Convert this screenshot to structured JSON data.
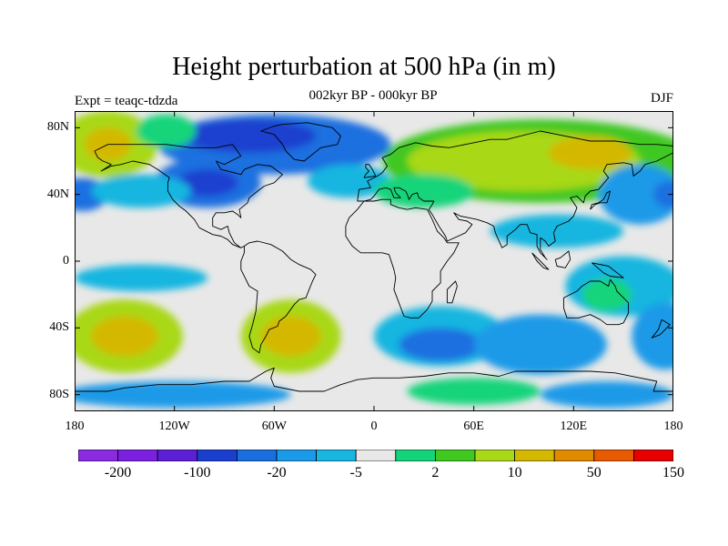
{
  "title": "Height perturbation at 500 hPa (in m)",
  "subtitle_left": "Expt = teaqc-tdzda",
  "subtitle_center": "002kyr BP - 000kyr BP",
  "subtitle_right": "DJF",
  "map": {
    "projection": "cylindrical equidistant",
    "lon_range": [
      -180,
      180
    ],
    "lat_range": [
      -90,
      90
    ],
    "y_ticks": [
      {
        "lat": 80,
        "label": "80N"
      },
      {
        "lat": 40,
        "label": "40N"
      },
      {
        "lat": 0,
        "label": "0"
      },
      {
        "lat": -40,
        "label": "40S"
      },
      {
        "lat": -80,
        "label": "80S"
      }
    ],
    "x_ticks": [
      {
        "lon": -180,
        "label": "180"
      },
      {
        "lon": -120,
        "label": "120W"
      },
      {
        "lon": -60,
        "label": "60W"
      },
      {
        "lon": 0,
        "label": "0"
      },
      {
        "lon": 60,
        "label": "60E"
      },
      {
        "lon": 120,
        "label": "120E"
      },
      {
        "lon": 180,
        "label": "180"
      }
    ],
    "background_color": "#e8e8e8",
    "coastline_color": "#000000"
  },
  "colorbar": {
    "colors": [
      "#8a2be2",
      "#7b1fe0",
      "#5a1fd6",
      "#1a3fcf",
      "#1a6fe0",
      "#1a9ae8",
      "#18b6e0",
      "#e8e8e8",
      "#14d47a",
      "#40c820",
      "#a8d818",
      "#d4b800",
      "#e08a00",
      "#e85a00",
      "#e80000"
    ],
    "labels": [
      {
        "boundary": 1,
        "text": "-200"
      },
      {
        "boundary": 3,
        "text": "-100"
      },
      {
        "boundary": 5,
        "text": "-20"
      },
      {
        "boundary": 7,
        "text": "-5"
      },
      {
        "boundary": 9,
        "text": "2"
      },
      {
        "boundary": 11,
        "text": "10"
      },
      {
        "boundary": 13,
        "text": "50"
      },
      {
        "boundary": 15,
        "text": "150"
      }
    ]
  },
  "blobs": [
    {
      "lon": -60,
      "lat": 70,
      "rlon": 70,
      "rlat": 18,
      "color": "#1a6fe0"
    },
    {
      "lon": -75,
      "lat": 75,
      "rlon": 40,
      "rlat": 10,
      "color": "#1a3fcf"
    },
    {
      "lon": -100,
      "lat": 47,
      "rlon": 32,
      "rlat": 15,
      "color": "#1a6fe0"
    },
    {
      "lon": -100,
      "lat": 47,
      "rlon": 18,
      "rlat": 8,
      "color": "#1a3fcf"
    },
    {
      "lon": -160,
      "lat": 70,
      "rlon": 30,
      "rlat": 20,
      "color": "#a8d818"
    },
    {
      "lon": -160,
      "lat": 70,
      "rlon": 14,
      "rlat": 10,
      "color": "#d4b800"
    },
    {
      "lon": -125,
      "lat": 78,
      "rlon": 18,
      "rlat": 10,
      "color": "#14d47a"
    },
    {
      "lon": -175,
      "lat": 40,
      "rlon": 15,
      "rlat": 10,
      "color": "#1a6fe0"
    },
    {
      "lon": -140,
      "lat": 42,
      "rlon": 30,
      "rlat": 10,
      "color": "#18b6e0"
    },
    {
      "lon": -15,
      "lat": 48,
      "rlon": 25,
      "rlat": 10,
      "color": "#18b6e0"
    },
    {
      "lon": 100,
      "lat": 60,
      "rlon": 95,
      "rlat": 25,
      "color": "#40c820"
    },
    {
      "lon": 90,
      "lat": 60,
      "rlon": 70,
      "rlat": 18,
      "color": "#a8d818"
    },
    {
      "lon": 130,
      "lat": 65,
      "rlon": 25,
      "rlat": 10,
      "color": "#d4b800"
    },
    {
      "lon": 30,
      "lat": 42,
      "rlon": 30,
      "rlat": 10,
      "color": "#14d47a"
    },
    {
      "lon": 160,
      "lat": 40,
      "rlon": 25,
      "rlat": 18,
      "color": "#1a9ae8"
    },
    {
      "lon": 178,
      "lat": 40,
      "rlon": 10,
      "rlat": 8,
      "color": "#1a6fe0"
    },
    {
      "lon": 110,
      "lat": 18,
      "rlon": 40,
      "rlat": 10,
      "color": "#18b6e0"
    },
    {
      "lon": 150,
      "lat": -15,
      "rlon": 35,
      "rlat": 18,
      "color": "#18b6e0"
    },
    {
      "lon": 140,
      "lat": -20,
      "rlon": 15,
      "rlat": 10,
      "color": "#14d47a"
    },
    {
      "lon": -150,
      "lat": -45,
      "rlon": 35,
      "rlat": 22,
      "color": "#a8d818"
    },
    {
      "lon": -150,
      "lat": -45,
      "rlon": 20,
      "rlat": 12,
      "color": "#d4b800"
    },
    {
      "lon": -140,
      "lat": -10,
      "rlon": 40,
      "rlat": 8,
      "color": "#18b6e0"
    },
    {
      "lon": -50,
      "lat": -45,
      "rlon": 30,
      "rlat": 22,
      "color": "#a8d818"
    },
    {
      "lon": -50,
      "lat": -45,
      "rlon": 18,
      "rlat": 12,
      "color": "#d4b800"
    },
    {
      "lon": 40,
      "lat": -45,
      "rlon": 40,
      "rlat": 18,
      "color": "#18b6e0"
    },
    {
      "lon": 40,
      "lat": -50,
      "rlon": 25,
      "rlat": 10,
      "color": "#1a6fe0"
    },
    {
      "lon": 100,
      "lat": -50,
      "rlon": 40,
      "rlat": 18,
      "color": "#1a9ae8"
    },
    {
      "lon": 175,
      "lat": -45,
      "rlon": 20,
      "rlat": 20,
      "color": "#1a9ae8"
    },
    {
      "lon": -120,
      "lat": -80,
      "rlon": 70,
      "rlat": 8,
      "color": "#1a9ae8"
    },
    {
      "lon": 60,
      "lat": -78,
      "rlon": 40,
      "rlat": 8,
      "color": "#14d47a"
    },
    {
      "lon": 140,
      "lat": -80,
      "rlon": 40,
      "rlat": 8,
      "color": "#1a9ae8"
    }
  ],
  "coastlines": [
    [
      [
        -168,
        66
      ],
      [
        -160,
        70
      ],
      [
        -140,
        70
      ],
      [
        -125,
        70
      ],
      [
        -110,
        68
      ],
      [
        -95,
        68
      ],
      [
        -85,
        70
      ],
      [
        -80,
        63
      ],
      [
        -90,
        58
      ],
      [
        -95,
        60
      ],
      [
        -92,
        55
      ],
      [
        -80,
        52
      ],
      [
        -78,
        55
      ],
      [
        -70,
        58
      ],
      [
        -62,
        57
      ],
      [
        -55,
        52
      ],
      [
        -60,
        47
      ],
      [
        -66,
        45
      ],
      [
        -70,
        42
      ],
      [
        -75,
        38
      ],
      [
        -76,
        35
      ],
      [
        -81,
        31
      ],
      [
        -80,
        26
      ],
      [
        -82,
        28
      ],
      [
        -85,
        30
      ],
      [
        -90,
        29
      ],
      [
        -95,
        29
      ],
      [
        -97,
        26
      ],
      [
        -97,
        21
      ],
      [
        -92,
        19
      ],
      [
        -88,
        21
      ],
      [
        -87,
        17
      ],
      [
        -84,
        11
      ],
      [
        -80,
        8
      ],
      [
        -78,
        9
      ],
      [
        -80,
        8
      ],
      [
        -85,
        10
      ],
      [
        -88,
        13
      ],
      [
        -92,
        15
      ],
      [
        -97,
        16
      ],
      [
        -105,
        20
      ],
      [
        -108,
        25
      ],
      [
        -113,
        30
      ],
      [
        -117,
        33
      ],
      [
        -121,
        37
      ],
      [
        -124,
        42
      ],
      [
        -124,
        47
      ],
      [
        -123,
        50
      ],
      [
        -130,
        55
      ],
      [
        -135,
        58
      ],
      [
        -145,
        60
      ],
      [
        -152,
        58
      ],
      [
        -158,
        57
      ],
      [
        -164,
        54
      ],
      [
        -158,
        58
      ],
      [
        -163,
        60
      ],
      [
        -166,
        62
      ],
      [
        -168,
        66
      ]
    ],
    [
      [
        -55,
        82
      ],
      [
        -40,
        83
      ],
      [
        -25,
        80
      ],
      [
        -20,
        75
      ],
      [
        -22,
        70
      ],
      [
        -32,
        68
      ],
      [
        -42,
        60
      ],
      [
        -48,
        61
      ],
      [
        -53,
        66
      ],
      [
        -55,
        70
      ],
      [
        -60,
        76
      ],
      [
        -68,
        78
      ],
      [
        -60,
        81
      ],
      [
        -55,
        82
      ]
    ],
    [
      [
        -78,
        9
      ],
      [
        -75,
        11
      ],
      [
        -70,
        12
      ],
      [
        -62,
        10
      ],
      [
        -55,
        6
      ],
      [
        -50,
        1
      ],
      [
        -45,
        -2
      ],
      [
        -38,
        -5
      ],
      [
        -35,
        -8
      ],
      [
        -37,
        -12
      ],
      [
        -39,
        -17
      ],
      [
        -41,
        -22
      ],
      [
        -45,
        -23
      ],
      [
        -48,
        -26
      ],
      [
        -53,
        -33
      ],
      [
        -57,
        -36
      ],
      [
        -58,
        -39
      ],
      [
        -63,
        -41
      ],
      [
        -65,
        -45
      ],
      [
        -68,
        -50
      ],
      [
        -69,
        -55
      ],
      [
        -73,
        -52
      ],
      [
        -75,
        -45
      ],
      [
        -73,
        -38
      ],
      [
        -71,
        -30
      ],
      [
        -70,
        -18
      ],
      [
        -75,
        -15
      ],
      [
        -80,
        -5
      ],
      [
        -80,
        0
      ],
      [
        -78,
        5
      ],
      [
        -78,
        9
      ]
    ],
    [
      [
        -10,
        36
      ],
      [
        -9,
        43
      ],
      [
        -2,
        44
      ],
      [
        -4,
        48
      ],
      [
        2,
        51
      ],
      [
        5,
        53
      ],
      [
        8,
        57
      ],
      [
        5,
        62
      ],
      [
        10,
        64
      ],
      [
        15,
        68
      ],
      [
        25,
        71
      ],
      [
        35,
        69
      ],
      [
        45,
        68
      ],
      [
        55,
        70
      ],
      [
        70,
        73
      ],
      [
        80,
        73
      ],
      [
        100,
        78
      ],
      [
        110,
        76
      ],
      [
        130,
        72
      ],
      [
        145,
        72
      ],
      [
        160,
        70
      ],
      [
        170,
        70
      ],
      [
        180,
        69
      ],
      [
        180,
        65
      ],
      [
        170,
        60
      ],
      [
        163,
        58
      ],
      [
        160,
        54
      ],
      [
        156,
        51
      ],
      [
        155,
        58
      ],
      [
        150,
        59
      ],
      [
        140,
        58
      ],
      [
        138,
        54
      ],
      [
        141,
        50
      ],
      [
        135,
        43
      ],
      [
        130,
        42
      ],
      [
        127,
        39
      ],
      [
        126,
        35
      ],
      [
        122,
        39
      ],
      [
        118,
        38
      ],
      [
        122,
        32
      ],
      [
        120,
        27
      ],
      [
        117,
        24
      ],
      [
        110,
        21
      ],
      [
        108,
        17
      ],
      [
        109,
        12
      ],
      [
        105,
        9
      ],
      [
        103,
        12
      ],
      [
        100,
        14
      ],
      [
        100,
        7
      ],
      [
        103,
        2
      ],
      [
        104,
        1
      ],
      [
        100,
        5
      ],
      [
        98,
        9
      ],
      [
        98,
        16
      ],
      [
        94,
        17
      ],
      [
        92,
        22
      ],
      [
        88,
        22
      ],
      [
        85,
        19
      ],
      [
        80,
        15
      ],
      [
        80,
        10
      ],
      [
        77,
        8
      ],
      [
        73,
        17
      ],
      [
        72,
        21
      ],
      [
        68,
        23
      ],
      [
        62,
        25
      ],
      [
        57,
        26
      ],
      [
        52,
        27
      ],
      [
        48,
        29
      ],
      [
        51,
        25
      ],
      [
        56,
        24
      ],
      [
        59,
        22
      ],
      [
        55,
        17
      ],
      [
        44,
        12
      ],
      [
        43,
        15
      ],
      [
        39,
        21
      ],
      [
        35,
        28
      ],
      [
        33,
        31
      ],
      [
        35,
        34
      ],
      [
        36,
        36
      ],
      [
        30,
        36
      ],
      [
        27,
        38
      ],
      [
        26,
        41
      ],
      [
        23,
        40
      ],
      [
        21,
        37
      ],
      [
        20,
        40
      ],
      [
        19,
        42
      ],
      [
        15,
        44
      ],
      [
        12,
        44
      ],
      [
        13,
        41
      ],
      [
        16,
        38
      ],
      [
        12,
        38
      ],
      [
        10,
        43
      ],
      [
        7,
        44
      ],
      [
        3,
        43
      ],
      [
        0,
        39
      ],
      [
        -2,
        37
      ],
      [
        -6,
        36
      ],
      [
        -10,
        36
      ]
    ],
    [
      [
        -6,
        36
      ],
      [
        -10,
        31
      ],
      [
        -15,
        26
      ],
      [
        -17,
        21
      ],
      [
        -17,
        15
      ],
      [
        -13,
        9
      ],
      [
        -8,
        5
      ],
      [
        -3,
        5
      ],
      [
        5,
        5
      ],
      [
        9,
        4
      ],
      [
        10,
        1
      ],
      [
        12,
        -5
      ],
      [
        13,
        -10
      ],
      [
        12,
        -17
      ],
      [
        15,
        -25
      ],
      [
        18,
        -33
      ],
      [
        22,
        -34
      ],
      [
        27,
        -34
      ],
      [
        32,
        -29
      ],
      [
        35,
        -24
      ],
      [
        35,
        -18
      ],
      [
        40,
        -13
      ],
      [
        40,
        -6
      ],
      [
        44,
        0
      ],
      [
        48,
        5
      ],
      [
        51,
        11
      ],
      [
        44,
        11
      ],
      [
        42,
        14
      ],
      [
        38,
        18
      ],
      [
        35,
        25
      ],
      [
        32,
        31
      ],
      [
        25,
        32
      ],
      [
        20,
        31
      ],
      [
        15,
        32
      ],
      [
        10,
        34
      ],
      [
        10,
        37
      ],
      [
        5,
        37
      ],
      [
        0,
        36
      ],
      [
        -6,
        36
      ]
    ],
    [
      [
        114,
        -22
      ],
      [
        114,
        -28
      ],
      [
        116,
        -34
      ],
      [
        123,
        -34
      ],
      [
        130,
        -32
      ],
      [
        136,
        -35
      ],
      [
        140,
        -38
      ],
      [
        147,
        -38
      ],
      [
        150,
        -37
      ],
      [
        153,
        -31
      ],
      [
        153,
        -25
      ],
      [
        150,
        -22
      ],
      [
        146,
        -18
      ],
      [
        145,
        -15
      ],
      [
        142,
        -11
      ],
      [
        141,
        -15
      ],
      [
        136,
        -12
      ],
      [
        130,
        -12
      ],
      [
        125,
        -15
      ],
      [
        122,
        -18
      ],
      [
        116,
        -21
      ],
      [
        114,
        -22
      ]
    ],
    [
      [
        -180,
        -78
      ],
      [
        -160,
        -78
      ],
      [
        -150,
        -76
      ],
      [
        -130,
        -74
      ],
      [
        -110,
        -74
      ],
      [
        -90,
        -72
      ],
      [
        -75,
        -72
      ],
      [
        -65,
        -66
      ],
      [
        -60,
        -64
      ],
      [
        -62,
        -70
      ],
      [
        -60,
        -75
      ],
      [
        -45,
        -78
      ],
      [
        -30,
        -78
      ],
      [
        -20,
        -74
      ],
      [
        -10,
        -71
      ],
      [
        0,
        -70
      ],
      [
        15,
        -70
      ],
      [
        30,
        -69
      ],
      [
        45,
        -67
      ],
      [
        60,
        -67
      ],
      [
        75,
        -69
      ],
      [
        85,
        -66
      ],
      [
        100,
        -66
      ],
      [
        115,
        -66
      ],
      [
        130,
        -66
      ],
      [
        145,
        -67
      ],
      [
        160,
        -70
      ],
      [
        170,
        -72
      ],
      [
        168,
        -78
      ],
      [
        180,
        -78
      ]
    ],
    [
      [
        -6,
        50
      ],
      [
        -5,
        52
      ],
      [
        -3,
        54
      ],
      [
        -5,
        56
      ],
      [
        -5,
        58
      ],
      [
        -3,
        58
      ],
      [
        -1,
        55
      ],
      [
        0,
        53
      ],
      [
        1,
        51
      ],
      [
        -6,
        50
      ]
    ],
    [
      [
        130,
        31
      ],
      [
        133,
        34
      ],
      [
        136,
        35
      ],
      [
        140,
        35
      ],
      [
        141,
        38
      ],
      [
        142,
        42
      ],
      [
        140,
        41
      ],
      [
        138,
        37
      ],
      [
        135,
        35
      ],
      [
        131,
        34
      ],
      [
        130,
        31
      ]
    ],
    [
      [
        95,
        5
      ],
      [
        100,
        0
      ],
      [
        105,
        -5
      ],
      [
        102,
        -4
      ],
      [
        98,
        0
      ],
      [
        95,
        5
      ]
    ],
    [
      [
        109,
        1
      ],
      [
        110,
        -3
      ],
      [
        115,
        -4
      ],
      [
        118,
        1
      ],
      [
        117,
        6
      ],
      [
        112,
        2
      ],
      [
        109,
        1
      ]
    ],
    [
      [
        131,
        -1
      ],
      [
        141,
        -3
      ],
      [
        150,
        -10
      ],
      [
        142,
        -9
      ],
      [
        138,
        -7
      ],
      [
        131,
        -1
      ]
    ],
    [
      [
        44,
        -25
      ],
      [
        47,
        -25
      ],
      [
        50,
        -15
      ],
      [
        49,
        -12
      ],
      [
        44,
        -17
      ],
      [
        44,
        -25
      ]
    ],
    [
      [
        173,
        -35
      ],
      [
        178,
        -38
      ],
      [
        175,
        -41
      ],
      [
        172,
        -44
      ],
      [
        167,
        -46
      ],
      [
        171,
        -41
      ],
      [
        173,
        -35
      ]
    ]
  ]
}
